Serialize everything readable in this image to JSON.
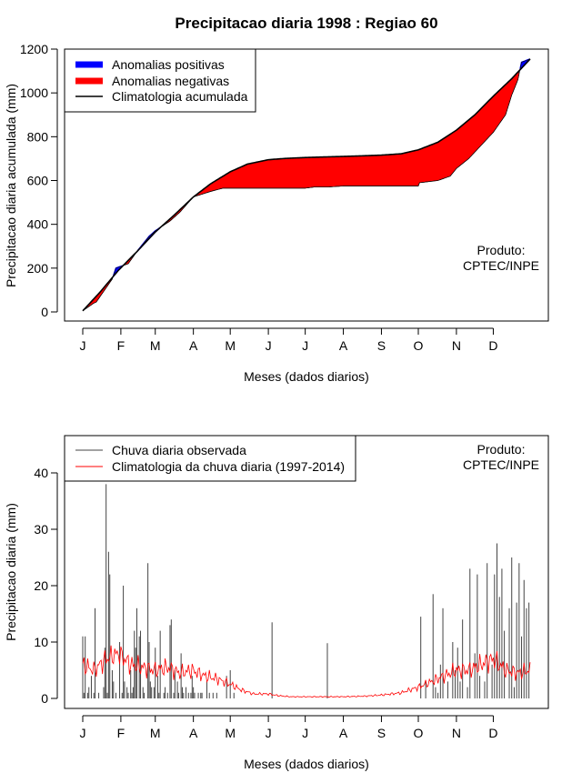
{
  "title": "Precipitacao diaria 1998 : Regiao 60",
  "colors": {
    "positive": "#0000ff",
    "negative": "#ff0000",
    "climatology": "#000000",
    "daily_obs": "#444444",
    "daily_clim": "#ff0000"
  },
  "chart_data": [
    {
      "type": "area",
      "panel": "top",
      "title": "Precipitacao diaria 1998 : Regiao 60",
      "xlabel": "Meses (dados diarios)",
      "ylabel": "Precipitacao diaria acumulada (mm)",
      "ylim": [
        0,
        1200
      ],
      "yticks": [
        0,
        200,
        400,
        600,
        800,
        1000,
        1200
      ],
      "month_labels": [
        "J",
        "F",
        "M",
        "A",
        "M",
        "J",
        "J",
        "A",
        "S",
        "O",
        "N",
        "D"
      ],
      "month_start_days": [
        1,
        32,
        60,
        91,
        121,
        152,
        182,
        213,
        244,
        274,
        305,
        335
      ],
      "xlim": [
        1,
        365
      ],
      "legend": {
        "position": "top-left",
        "entries": [
          "Anomalias positivas",
          "Anomalias negativas",
          "Climatologia acumulada"
        ]
      },
      "annotation": [
        "Produto:",
        "CPTEC/INPE"
      ],
      "climatology_cumulative": {
        "day": [
          1,
          15,
          30,
          45,
          60,
          75,
          91,
          105,
          121,
          135,
          152,
          166,
          182,
          200,
          213,
          230,
          244,
          260,
          274,
          290,
          305,
          320,
          335,
          350,
          365
        ],
        "value": [
          5,
          90,
          190,
          275,
          365,
          440,
          525,
          585,
          640,
          675,
          695,
          701,
          705,
          708,
          710,
          713,
          716,
          722,
          740,
          775,
          830,
          900,
          985,
          1065,
          1155
        ]
      },
      "observed_cumulative": {
        "day": [
          1,
          10,
          12,
          25,
          28,
          38,
          45,
          55,
          60,
          72,
          80,
          91,
          105,
          115,
          121,
          152,
          182,
          189,
          200,
          213,
          230,
          244,
          260,
          274,
          275,
          290,
          300,
          305,
          315,
          320,
          335,
          345,
          350,
          355,
          358,
          365
        ],
        "value": [
          5,
          40,
          45,
          150,
          200,
          220,
          275,
          345,
          370,
          415,
          455,
          525,
          550,
          565,
          565,
          565,
          565,
          570,
          570,
          575,
          575,
          575,
          575,
          575,
          590,
          600,
          620,
          655,
          700,
          730,
          820,
          900,
          990,
          1060,
          1140,
          1155
        ]
      }
    },
    {
      "type": "bar",
      "panel": "bottom",
      "xlabel": "Meses (dados diarios)",
      "ylabel": "Precipitacao diaria (mm)",
      "ylim": [
        0,
        45
      ],
      "yticks": [
        0,
        10,
        20,
        30,
        40
      ],
      "month_labels": [
        "J",
        "F",
        "M",
        "A",
        "M",
        "J",
        "J",
        "A",
        "S",
        "O",
        "N",
        "D"
      ],
      "month_start_days": [
        1,
        32,
        60,
        91,
        121,
        152,
        182,
        213,
        244,
        274,
        305,
        335
      ],
      "xlim": [
        1,
        365
      ],
      "legend": {
        "position": "top-left",
        "entries": [
          "Chuva diaria observada",
          "Climatologia da chuva diaria (1997-2014)"
        ]
      },
      "annotation": [
        "Produto:",
        "CPTEC/INPE"
      ],
      "observed_daily": {
        "day": [
          1,
          2,
          3,
          4,
          5,
          6,
          7,
          8,
          9,
          10,
          11,
          12,
          13,
          14,
          15,
          16,
          17,
          18,
          19,
          20,
          21,
          22,
          23,
          24,
          25,
          26,
          27,
          28,
          29,
          30,
          31,
          32,
          33,
          34,
          35,
          36,
          37,
          38,
          39,
          40,
          41,
          42,
          43,
          44,
          45,
          46,
          47,
          48,
          49,
          50,
          51,
          52,
          53,
          54,
          55,
          56,
          57,
          58,
          59,
          60,
          61,
          62,
          63,
          64,
          65,
          66,
          67,
          68,
          69,
          70,
          71,
          72,
          73,
          74,
          75,
          76,
          77,
          78,
          79,
          80,
          81,
          82,
          83,
          84,
          85,
          86,
          87,
          88,
          89,
          90,
          91,
          92,
          93,
          94,
          95,
          96,
          97,
          98,
          99,
          100,
          101,
          102,
          103,
          104,
          105,
          106,
          107,
          108,
          109,
          110,
          112,
          115,
          118,
          121,
          124,
          128,
          131,
          140,
          150,
          155,
          162,
          175,
          188,
          200,
          210,
          225,
          240,
          255,
          270,
          274,
          276,
          278,
          280,
          283,
          286,
          288,
          290,
          292,
          294,
          296,
          298,
          300,
          302,
          304,
          306,
          308,
          310,
          312,
          314,
          316,
          318,
          320,
          322,
          324,
          326,
          328,
          330,
          332,
          334,
          336,
          338,
          340,
          342,
          344,
          346,
          348,
          350,
          352,
          354,
          356,
          358,
          360,
          362,
          364
        ],
        "value": [
          11,
          1,
          11,
          0,
          1,
          2,
          0,
          4,
          0,
          1,
          16,
          0,
          0,
          1,
          0,
          0,
          0,
          2,
          9,
          38,
          1,
          26,
          22,
          0,
          5,
          3,
          0,
          1,
          0,
          0,
          10,
          0,
          1,
          20,
          3,
          0,
          2,
          1,
          0,
          5,
          1,
          2,
          12,
          9,
          16,
          0,
          11,
          12,
          0,
          2,
          1,
          0,
          0,
          24,
          10,
          3,
          2,
          0,
          2,
          9,
          0,
          4,
          1,
          12,
          0,
          0,
          1,
          2,
          0,
          1,
          0,
          13,
          14,
          0,
          1,
          5,
          0,
          3,
          1,
          0,
          8,
          2,
          1,
          0,
          2,
          0,
          1,
          0,
          1,
          4,
          2,
          1,
          0,
          0,
          1,
          0,
          1,
          1,
          0,
          0,
          0,
          3,
          0,
          1,
          0,
          0,
          1,
          0,
          0,
          1,
          0,
          0,
          4,
          5,
          1,
          0,
          0,
          0,
          0,
          13.5,
          0,
          0,
          0,
          9.8,
          0,
          0,
          0,
          0,
          0,
          0,
          14.5,
          0,
          3,
          0,
          18.5,
          2,
          1,
          6,
          16,
          0,
          3,
          0,
          10,
          5,
          9,
          3,
          14,
          0,
          2,
          23,
          0,
          8,
          22,
          4,
          0,
          3,
          24,
          0,
          6,
          22,
          27.5,
          18,
          23,
          12,
          0,
          16,
          25,
          2,
          17,
          24,
          11,
          21,
          16,
          17
        ]
      },
      "climatology_daily": {
        "day": [
          1,
          10,
          20,
          30,
          40,
          50,
          60,
          70,
          80,
          90,
          100,
          110,
          121,
          130,
          140,
          152,
          160,
          170,
          182,
          195,
          213,
          230,
          244,
          260,
          274,
          285,
          295,
          305,
          315,
          325,
          335,
          345,
          355,
          365
        ],
        "value": [
          6,
          5,
          7,
          8,
          6,
          5.5,
          5,
          5.5,
          4.5,
          5,
          4,
          3.5,
          2.5,
          1.5,
          0.8,
          0.8,
          0.5,
          0.3,
          0.3,
          0.3,
          0.3,
          0.4,
          0.6,
          1,
          2,
          3,
          4,
          5,
          5,
          6,
          7,
          5,
          4.5,
          5
        ]
      }
    }
  ]
}
